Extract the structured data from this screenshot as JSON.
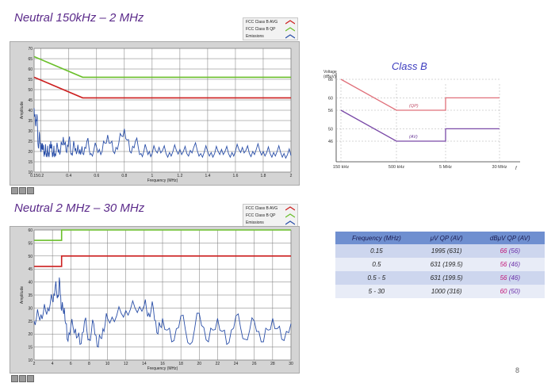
{
  "panel1": {
    "title": "Neutral 150kHz – 2 MHz"
  },
  "panel2": {
    "title": "Neutral 2 MHz – 30 MHz"
  },
  "legend": [
    {
      "label": "FCC Class B AVG",
      "color": "#cc1f1f"
    },
    {
      "label": "FCC Class B QP",
      "color": "#6abf2a"
    },
    {
      "label": "Emissions",
      "color": "#2a4fa8"
    }
  ],
  "colors": {
    "avg": "#cc1f1f",
    "qp": "#6abf2a",
    "emissions": "#2a4fa8",
    "plot_bg": "#ffffff",
    "frame_bg": "#d4d4d4"
  },
  "class_b": {
    "title": "Class B",
    "ylabel_line1": "Voltage",
    "ylabel_line2": "(dBμV)",
    "x_axis_letter": "f",
    "qp_label": "(QP)",
    "avg_label": "(AV)"
  },
  "table": {
    "headers": [
      "Frequency (MHz)",
      "μV QP (AV)",
      "dBμV QP (AV)"
    ],
    "rows": [
      {
        "freq": "0.15",
        "uv": "1995 (631)",
        "db_qp": "66",
        "db_av": "(56)"
      },
      {
        "freq": "0.5",
        "uv": "631 (199.5)",
        "db_qp": "56",
        "db_av": "(46)"
      },
      {
        "freq": "0.5 - 5",
        "uv": "631 (199.5)",
        "db_qp": "56",
        "db_av": "(46)"
      },
      {
        "freq": "5 - 30",
        "uv": "1000 (316)",
        "db_qp": "60",
        "db_av": "(50)"
      }
    ]
  },
  "page_number": "8",
  "chart_data": [
    {
      "type": "line",
      "title": "Neutral 150kHz – 2 MHz",
      "xlabel": "Frequency (MHz)",
      "ylabel": "Amplitude",
      "xlim": [
        0.15,
        2
      ],
      "ylim": [
        10,
        70
      ],
      "x_tick_labels": [
        "0.15",
        "0.2",
        "0.4",
        "0.6",
        "0.8",
        "1",
        "1.2",
        "1.4",
        "1.6",
        "1.8",
        "2"
      ],
      "y_tick_labels": [
        "10",
        "15",
        "20",
        "25",
        "30",
        "35",
        "40",
        "45",
        "50",
        "55",
        "60",
        "65",
        "70"
      ],
      "grid": true,
      "series": [
        {
          "name": "FCC Class B AVG",
          "x": [
            0.15,
            0.5,
            2
          ],
          "y": [
            56,
            46,
            46
          ]
        },
        {
          "name": "FCC Class B QP",
          "x": [
            0.15,
            0.5,
            2
          ],
          "y": [
            66,
            56,
            56
          ]
        },
        {
          "name": "Emissions",
          "x": [
            0.15,
            0.16,
            0.17,
            0.18,
            0.19,
            0.2,
            0.21,
            0.22,
            0.23,
            0.24,
            0.25,
            0.26,
            0.27,
            0.28,
            0.29,
            0.3,
            0.32,
            0.34,
            0.36,
            0.38,
            0.4,
            0.42,
            0.44,
            0.46,
            0.48,
            0.5,
            0.53,
            0.56,
            0.6,
            0.64,
            0.68,
            0.72,
            0.76,
            0.8,
            0.84,
            0.88,
            0.92,
            0.96,
            1,
            1.05,
            1.1,
            1.15,
            1.2,
            1.25,
            1.3,
            1.35,
            1.4,
            1.45,
            1.5,
            1.55,
            1.6,
            1.65,
            1.7,
            1.75,
            1.8,
            1.85,
            1.9,
            1.95,
            2
          ],
          "y": [
            41,
            33,
            38,
            22,
            28,
            20,
            24,
            19,
            21,
            19,
            20,
            19,
            25,
            19,
            20,
            19,
            22,
            20,
            27,
            20,
            26,
            19,
            23,
            20,
            21,
            19,
            25,
            19,
            22,
            20,
            28,
            20,
            24,
            31,
            20,
            25,
            19,
            21,
            19,
            22,
            19,
            20,
            21,
            19,
            22,
            19,
            20,
            19,
            21,
            19,
            20,
            22,
            19,
            21,
            20,
            19,
            20,
            19,
            18
          ]
        }
      ]
    },
    {
      "type": "line",
      "title": "Neutral 2 MHz – 30 MHz",
      "xlabel": "Frequency (MHz)",
      "ylabel": "Amplitude",
      "xlim": [
        2,
        30
      ],
      "ylim": [
        10,
        60
      ],
      "x_tick_labels": [
        "2",
        "4",
        "6",
        "8",
        "10",
        "12",
        "14",
        "16",
        "18",
        "20",
        "22",
        "24",
        "26",
        "28",
        "30"
      ],
      "y_tick_labels": [
        "10",
        "15",
        "20",
        "25",
        "30",
        "35",
        "40",
        "45",
        "50",
        "55",
        "60"
      ],
      "grid": true,
      "series": [
        {
          "name": "FCC Class B AVG",
          "x": [
            2,
            5,
            5,
            30
          ],
          "y": [
            46,
            46,
            50,
            50
          ]
        },
        {
          "name": "FCC Class B QP",
          "x": [
            2,
            5,
            5,
            30
          ],
          "y": [
            56,
            56,
            60,
            60
          ]
        },
        {
          "name": "Emissions",
          "x": [
            2,
            2.5,
            3,
            3.5,
            4,
            4.3,
            4.6,
            4.8,
            5,
            5.3,
            5.6,
            6,
            6.5,
            7,
            7.5,
            8,
            8.5,
            9,
            9.5,
            10,
            11,
            12,
            13,
            14,
            14.5,
            15,
            15.5,
            16,
            17,
            18,
            19,
            20,
            21,
            22,
            23,
            24,
            25,
            26,
            27,
            28,
            29,
            30
          ],
          "y": [
            25,
            27,
            28,
            30,
            33,
            38,
            35,
            40,
            29,
            30,
            18,
            23,
            22,
            16,
            25,
            18,
            24,
            15,
            22,
            26,
            27,
            29,
            30,
            31,
            28,
            30,
            20,
            26,
            17,
            27,
            16,
            28,
            17,
            26,
            16,
            27,
            18,
            25,
            17,
            26,
            18,
            24
          ]
        }
      ]
    },
    {
      "type": "line",
      "title": "Class B",
      "ylabel": "Voltage (dBμV)",
      "x_tick_labels": [
        "150 kHz",
        "500 kHz",
        "5 MHz",
        "30 MHz"
      ],
      "y_tick_labels": [
        "66",
        "60",
        "56",
        "50",
        "46"
      ],
      "series": [
        {
          "name": "(QP)",
          "x": [
            "150 kHz",
            "500 kHz",
            "5 MHz",
            "5 MHz",
            "30 MHz"
          ],
          "y": [
            66,
            56,
            56,
            60,
            60
          ]
        },
        {
          "name": "(AV)",
          "x": [
            "150 kHz",
            "500 kHz",
            "5 MHz",
            "5 MHz",
            "30 MHz"
          ],
          "y": [
            56,
            46,
            46,
            50,
            50
          ]
        }
      ]
    }
  ]
}
